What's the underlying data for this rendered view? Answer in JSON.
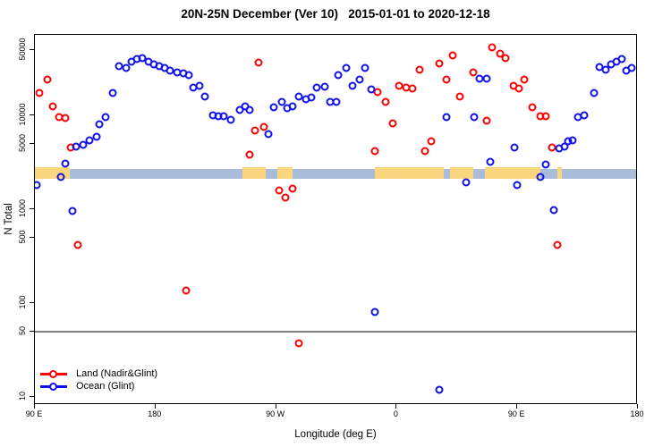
{
  "title": "20N-25N December (Ver 10)   2015-01-01 to 2020-12-18",
  "chart_data": {
    "type": "scatter",
    "title": "20N-25N December (Ver 10)   2015-01-01 to 2020-12-18",
    "xlabel": "Longitude (deg E)",
    "ylabel": "N Total",
    "x_axis": {
      "deg_min": 90,
      "deg_max": 540,
      "tick_positions_deg": [
        90,
        180,
        270,
        360,
        450,
        540
      ],
      "tick_labels": [
        "90 E",
        "180",
        "90 W",
        "0",
        "90 E",
        "180"
      ]
    },
    "y_axis": {
      "scale": "log",
      "ticks": [
        10,
        50,
        100,
        500,
        1000,
        5000,
        10000,
        50000
      ],
      "range": [
        8,
        73000
      ]
    },
    "reference_line_value": 50,
    "reference_line_color": "#808080",
    "map_strip": {
      "comment_band": "land/ocean map band drawn across plot",
      "value_band": [
        2100,
        2800
      ],
      "ocean_color": "#a9bdda",
      "land_color": "#fad77e",
      "land_segments_deg": [
        [
          90,
          116
        ],
        [
          245,
          262
        ],
        [
          271,
          282
        ],
        [
          344,
          395
        ],
        [
          400,
          417
        ],
        [
          426,
          467
        ],
        [
          480,
          483
        ]
      ]
    },
    "series": [
      {
        "name": "Land (Nadir&Glint)",
        "color": "#ff0000",
        "points": [
          [
            93,
            17500
          ],
          [
            99,
            24000
          ],
          [
            103,
            12500
          ],
          [
            108,
            9700
          ],
          [
            113,
            9500
          ],
          [
            117,
            4600
          ],
          [
            122,
            420
          ],
          [
            203,
            137
          ],
          [
            250,
            3800
          ],
          [
            254,
            7000
          ],
          [
            257,
            37000
          ],
          [
            261,
            7600
          ],
          [
            272,
            1600
          ],
          [
            277,
            1340
          ],
          [
            282,
            1650
          ],
          [
            287,
            37
          ],
          [
            344,
            4200
          ],
          [
            346,
            18000
          ],
          [
            352,
            14000
          ],
          [
            357,
            8300
          ],
          [
            362,
            21000
          ],
          [
            367,
            20000
          ],
          [
            372,
            19500
          ],
          [
            377,
            31000
          ],
          [
            381,
            4200
          ],
          [
            386,
            5300
          ],
          [
            392,
            36000
          ],
          [
            397,
            24000
          ],
          [
            402,
            44000
          ],
          [
            407,
            16000
          ],
          [
            417,
            29000
          ],
          [
            427,
            8900
          ],
          [
            431,
            53000
          ],
          [
            437,
            46000
          ],
          [
            441,
            41000
          ],
          [
            447,
            21000
          ],
          [
            451,
            19500
          ],
          [
            455,
            24000
          ],
          [
            461,
            12300
          ],
          [
            467,
            9900
          ],
          [
            471,
            9900
          ],
          [
            476,
            4600
          ],
          [
            480,
            420
          ]
        ]
      },
      {
        "name": "Ocean (Glint)",
        "color": "#1010e8",
        "points": [
          [
            91,
            1800
          ],
          [
            109,
            2200
          ],
          [
            113,
            3100
          ],
          [
            118,
            970
          ],
          [
            121,
            4700
          ],
          [
            126,
            4900
          ],
          [
            131,
            5500
          ],
          [
            136,
            5900
          ],
          [
            138,
            8100
          ],
          [
            143,
            9700
          ],
          [
            148,
            17500
          ],
          [
            153,
            34000
          ],
          [
            158,
            32000
          ],
          [
            162,
            38000
          ],
          [
            166,
            40000
          ],
          [
            170,
            41000
          ],
          [
            175,
            38000
          ],
          [
            179,
            35000
          ],
          [
            183,
            34000
          ],
          [
            187,
            32000
          ],
          [
            191,
            30000
          ],
          [
            196,
            29000
          ],
          [
            201,
            28000
          ],
          [
            205,
            27000
          ],
          [
            208,
            20000
          ],
          [
            213,
            21000
          ],
          [
            217,
            16000
          ],
          [
            223,
            10000
          ],
          [
            227,
            9900
          ],
          [
            231,
            9900
          ],
          [
            236,
            9000
          ],
          [
            243,
            11500
          ],
          [
            247,
            12500
          ],
          [
            250,
            11500
          ],
          [
            264,
            6400
          ],
          [
            268,
            12400
          ],
          [
            274,
            14000
          ],
          [
            278,
            12000
          ],
          [
            282,
            12600
          ],
          [
            287,
            16000
          ],
          [
            292,
            15000
          ],
          [
            296,
            15500
          ],
          [
            300,
            20000
          ],
          [
            306,
            20500
          ],
          [
            310,
            14000
          ],
          [
            315,
            14000
          ],
          [
            316,
            27000
          ],
          [
            322,
            32000
          ],
          [
            327,
            21000
          ],
          [
            332,
            24000
          ],
          [
            336,
            32000
          ],
          [
            341,
            19000
          ],
          [
            344,
            80
          ],
          [
            392,
            12
          ],
          [
            397,
            9700
          ],
          [
            412,
            1950
          ],
          [
            418,
            9600
          ],
          [
            422,
            25000
          ],
          [
            427,
            25000
          ],
          [
            430,
            3200
          ],
          [
            448,
            4600
          ],
          [
            450,
            1800
          ],
          [
            467,
            2200
          ],
          [
            471,
            3000
          ],
          [
            477,
            990
          ],
          [
            481,
            4500
          ],
          [
            485,
            4700
          ],
          [
            488,
            5300
          ],
          [
            491,
            5500
          ],
          [
            495,
            9600
          ],
          [
            500,
            10000
          ],
          [
            507,
            17500
          ],
          [
            511,
            33000
          ],
          [
            516,
            31000
          ],
          [
            520,
            35000
          ],
          [
            524,
            38000
          ],
          [
            528,
            40000
          ],
          [
            531,
            30000
          ],
          [
            535,
            32000
          ]
        ]
      }
    ],
    "legend_position": "bottom-left"
  },
  "legend": {
    "items": [
      {
        "label": "Land (Nadir&Glint)",
        "color": "#ff0000"
      },
      {
        "label": "Ocean (Glint)",
        "color": "#1010e8"
      }
    ]
  }
}
